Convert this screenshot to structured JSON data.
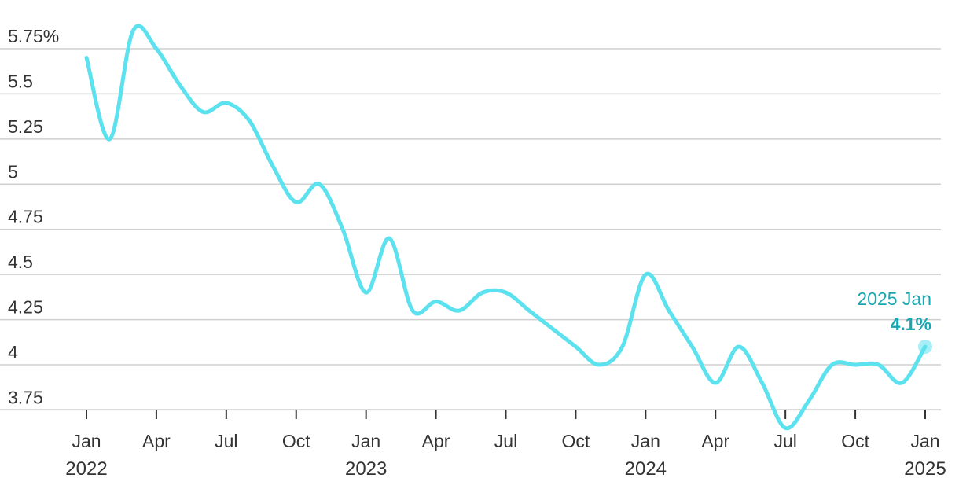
{
  "colors": {
    "line": "#5ce1ee",
    "annotation": "#1aa6b0",
    "grid": "#cfcfcf",
    "text": "#333333"
  },
  "chart_data": {
    "type": "line",
    "title": "",
    "xlabel": "",
    "ylabel": "",
    "ylim": [
      3.6,
      5.9
    ],
    "xlim": [
      "2022-01",
      "2025-01"
    ],
    "grid": "horizontal",
    "y_ticks": [
      {
        "value": 5.75,
        "label": "5.75%"
      },
      {
        "value": 5.5,
        "label": "5.5"
      },
      {
        "value": 5.25,
        "label": "5.25"
      },
      {
        "value": 5,
        "label": "5"
      },
      {
        "value": 4.75,
        "label": "4.75"
      },
      {
        "value": 4.5,
        "label": "4.5"
      },
      {
        "value": 4.25,
        "label": "4.25"
      },
      {
        "value": 4,
        "label": "4"
      },
      {
        "value": 3.75,
        "label": "3.75"
      }
    ],
    "x_ticks": [
      {
        "date": "2022-01",
        "label": "Jan",
        "year": "2022"
      },
      {
        "date": "2022-04",
        "label": "Apr",
        "year": ""
      },
      {
        "date": "2022-07",
        "label": "Jul",
        "year": ""
      },
      {
        "date": "2022-10",
        "label": "Oct",
        "year": ""
      },
      {
        "date": "2023-01",
        "label": "Jan",
        "year": "2023"
      },
      {
        "date": "2023-04",
        "label": "Apr",
        "year": ""
      },
      {
        "date": "2023-07",
        "label": "Jul",
        "year": ""
      },
      {
        "date": "2023-10",
        "label": "Oct",
        "year": ""
      },
      {
        "date": "2024-01",
        "label": "Jan",
        "year": "2024"
      },
      {
        "date": "2024-04",
        "label": "Apr",
        "year": ""
      },
      {
        "date": "2024-07",
        "label": "Jul",
        "year": ""
      },
      {
        "date": "2024-10",
        "label": "Oct",
        "year": ""
      },
      {
        "date": "2025-01",
        "label": "Jan",
        "year": "2025"
      }
    ],
    "series": [
      {
        "points": [
          {
            "x": "2022-01",
            "y": 5.7
          },
          {
            "x": "2022-02",
            "y": 5.25
          },
          {
            "x": "2022-03",
            "y": 5.85
          },
          {
            "x": "2022-04",
            "y": 5.75
          },
          {
            "x": "2022-05",
            "y": 5.55
          },
          {
            "x": "2022-06",
            "y": 5.4
          },
          {
            "x": "2022-07",
            "y": 5.45
          },
          {
            "x": "2022-08",
            "y": 5.35
          },
          {
            "x": "2022-09",
            "y": 5.1
          },
          {
            "x": "2022-10",
            "y": 4.9
          },
          {
            "x": "2022-11",
            "y": 5.0
          },
          {
            "x": "2022-12",
            "y": 4.75
          },
          {
            "x": "2023-01",
            "y": 4.4
          },
          {
            "x": "2023-02",
            "y": 4.7
          },
          {
            "x": "2023-03",
            "y": 4.3
          },
          {
            "x": "2023-04",
            "y": 4.35
          },
          {
            "x": "2023-05",
            "y": 4.3
          },
          {
            "x": "2023-06",
            "y": 4.4
          },
          {
            "x": "2023-07",
            "y": 4.4
          },
          {
            "x": "2023-08",
            "y": 4.3
          },
          {
            "x": "2023-09",
            "y": 4.2
          },
          {
            "x": "2023-10",
            "y": 4.1
          },
          {
            "x": "2023-11",
            "y": 4.0
          },
          {
            "x": "2023-12",
            "y": 4.1
          },
          {
            "x": "2024-01",
            "y": 4.5
          },
          {
            "x": "2024-02",
            "y": 4.3
          },
          {
            "x": "2024-03",
            "y": 4.1
          },
          {
            "x": "2024-04",
            "y": 3.9
          },
          {
            "x": "2024-05",
            "y": 4.1
          },
          {
            "x": "2024-06",
            "y": 3.9
          },
          {
            "x": "2024-07",
            "y": 3.65
          },
          {
            "x": "2024-08",
            "y": 3.8
          },
          {
            "x": "2024-09",
            "y": 4.0
          },
          {
            "x": "2024-10",
            "y": 4.0
          },
          {
            "x": "2024-11",
            "y": 4.0
          },
          {
            "x": "2024-12",
            "y": 3.9
          },
          {
            "x": "2025-01",
            "y": 4.1
          }
        ]
      }
    ],
    "annotation": {
      "date_label": "2025 Jan",
      "value_label": "4.1%",
      "x": "2025-01",
      "y": 4.1
    }
  }
}
